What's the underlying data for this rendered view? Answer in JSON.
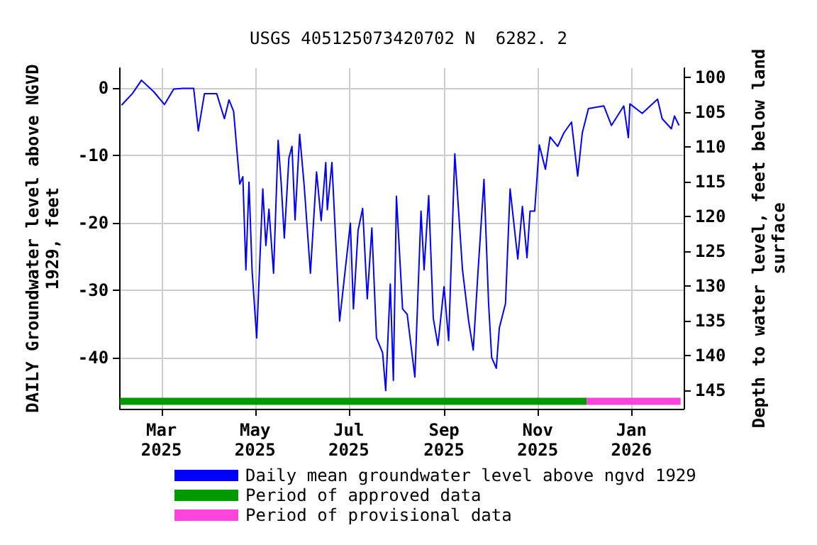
{
  "chart_data": {
    "type": "line",
    "title": "USGS 405125073420702 N  6282. 2",
    "ylabel": "DAILY Groundwater level above NGVD\n1929, feet",
    "y2label": "Depth to water level, feet below land\nsurface",
    "xlim": [
      "2025-02-02",
      "2026-02-04"
    ],
    "xticks": [
      {
        "value": "2025-03-01",
        "label": "Mar\n2025"
      },
      {
        "value": "2025-05-01",
        "label": "May\n2025"
      },
      {
        "value": "2025-07-01",
        "label": "Jul\n2025"
      },
      {
        "value": "2025-09-01",
        "label": "Sep\n2025"
      },
      {
        "value": "2025-11-01",
        "label": "Nov\n2025"
      },
      {
        "value": "2026-01-01",
        "label": "Jan\n2026"
      }
    ],
    "ylim": [
      -47.6,
      2.9
    ],
    "yticks": [
      -40,
      -30,
      -20,
      -10,
      0
    ],
    "y2lim": [
      147.7,
      98.7
    ],
    "y2ticks": [
      100,
      105,
      110,
      115,
      120,
      125,
      130,
      135,
      140,
      145
    ],
    "grid": true,
    "legend": "bottom",
    "marker": "none",
    "line_style": "solid",
    "series": [
      {
        "name": "Daily mean groundwater level above ngvd 1929",
        "color": "#0000ff",
        "x": [
          "2025-02-03",
          "2025-02-10",
          "2025-02-16",
          "2025-02-24",
          "2025-03-03",
          "2025-03-09",
          "2025-03-15",
          "2025-03-22",
          "2025-03-25",
          "2025-03-29",
          "2025-04-06",
          "2025-04-11",
          "2025-04-14",
          "2025-04-17",
          "2025-04-21",
          "2025-04-23",
          "2025-04-25",
          "2025-04-27",
          "2025-04-29",
          "2025-05-02",
          "2025-05-06",
          "2025-05-08",
          "2025-05-10",
          "2025-05-13",
          "2025-05-16",
          "2025-05-18",
          "2025-05-20",
          "2025-05-23",
          "2025-05-25",
          "2025-05-27",
          "2025-05-30",
          "2025-06-02",
          "2025-06-06",
          "2025-06-10",
          "2025-06-13",
          "2025-06-16",
          "2025-06-17",
          "2025-06-20",
          "2025-06-25",
          "2025-07-02",
          "2025-07-04",
          "2025-07-07",
          "2025-07-10",
          "2025-07-13",
          "2025-07-16",
          "2025-07-19",
          "2025-07-23",
          "2025-07-25",
          "2025-07-28",
          "2025-07-30",
          "2025-08-01",
          "2025-08-05",
          "2025-08-08",
          "2025-08-13",
          "2025-08-17",
          "2025-08-19",
          "2025-08-22",
          "2025-08-25",
          "2025-08-28",
          "2025-09-01",
          "2025-09-04",
          "2025-09-08",
          "2025-09-13",
          "2025-09-17",
          "2025-09-20",
          "2025-09-23",
          "2025-09-27",
          "2025-09-30",
          "2025-10-02",
          "2025-10-05",
          "2025-10-07",
          "2025-10-11",
          "2025-10-14",
          "2025-10-19",
          "2025-10-22",
          "2025-10-25",
          "2025-10-27",
          "2025-10-30",
          "2025-11-02",
          "2025-11-06",
          "2025-11-09",
          "2025-11-14",
          "2025-11-18",
          "2025-11-23",
          "2025-11-27",
          "2025-11-30",
          "2025-12-04",
          "2025-12-14",
          "2025-12-19",
          "2025-12-27",
          "2025-12-30",
          "2025-12-31",
          "2026-01-08",
          "2026-01-18",
          "2026-01-21",
          "2026-01-27",
          "2026-01-29",
          "2026-02-01"
        ],
        "values": [
          -2.6,
          -0.9,
          1.1,
          -0.6,
          -2.5,
          -0.2,
          -0.1,
          -0.1,
          -6.4,
          -0.9,
          -0.9,
          -4.6,
          -1.8,
          -3.5,
          -14.3,
          -13.2,
          -27,
          -14,
          -27,
          -37.1,
          -15,
          -23.4,
          -18,
          -27.5,
          -7.8,
          -14.3,
          -22.3,
          -10.4,
          -8.7,
          -19.6,
          -6.9,
          -14.7,
          -27.5,
          -12.5,
          -19.7,
          -11.1,
          -18.1,
          -11.1,
          -34.6,
          -20.1,
          -32.8,
          -21.2,
          -17.9,
          -31.3,
          -20.8,
          -37.1,
          -39.3,
          -44.9,
          -29.1,
          -43.4,
          -16.1,
          -32.8,
          -33.6,
          -42.9,
          -18.3,
          -27,
          -16,
          -34.2,
          -38.2,
          -29.5,
          -37.5,
          -9.8,
          -27,
          -34.6,
          -38.9,
          -27.7,
          -13.6,
          -32,
          -40,
          -41.6,
          -35.6,
          -32,
          -15,
          -25.4,
          -17.6,
          -25.2,
          -18.3,
          -18.3,
          -8.5,
          -12.1,
          -7.3,
          -8.7,
          -6.7,
          -5.1,
          -13.1,
          -6.7,
          -3.1,
          -2.7,
          -5.6,
          -2.7,
          -7.4,
          -2.4,
          -3.8,
          -1.7,
          -4.6,
          -6.1,
          -4.2,
          -5.6
        ]
      },
      {
        "name": "Period of approved data",
        "color": "#009900",
        "x": [
          "2025-02-02",
          "2025-12-03"
        ],
        "values": [
          -46.5,
          -46.5
        ]
      },
      {
        "name": "Period of provisional data",
        "color": "#ff44dd",
        "x": [
          "2025-12-03",
          "2026-02-02"
        ],
        "values": [
          -46.5,
          -46.5
        ]
      }
    ]
  }
}
